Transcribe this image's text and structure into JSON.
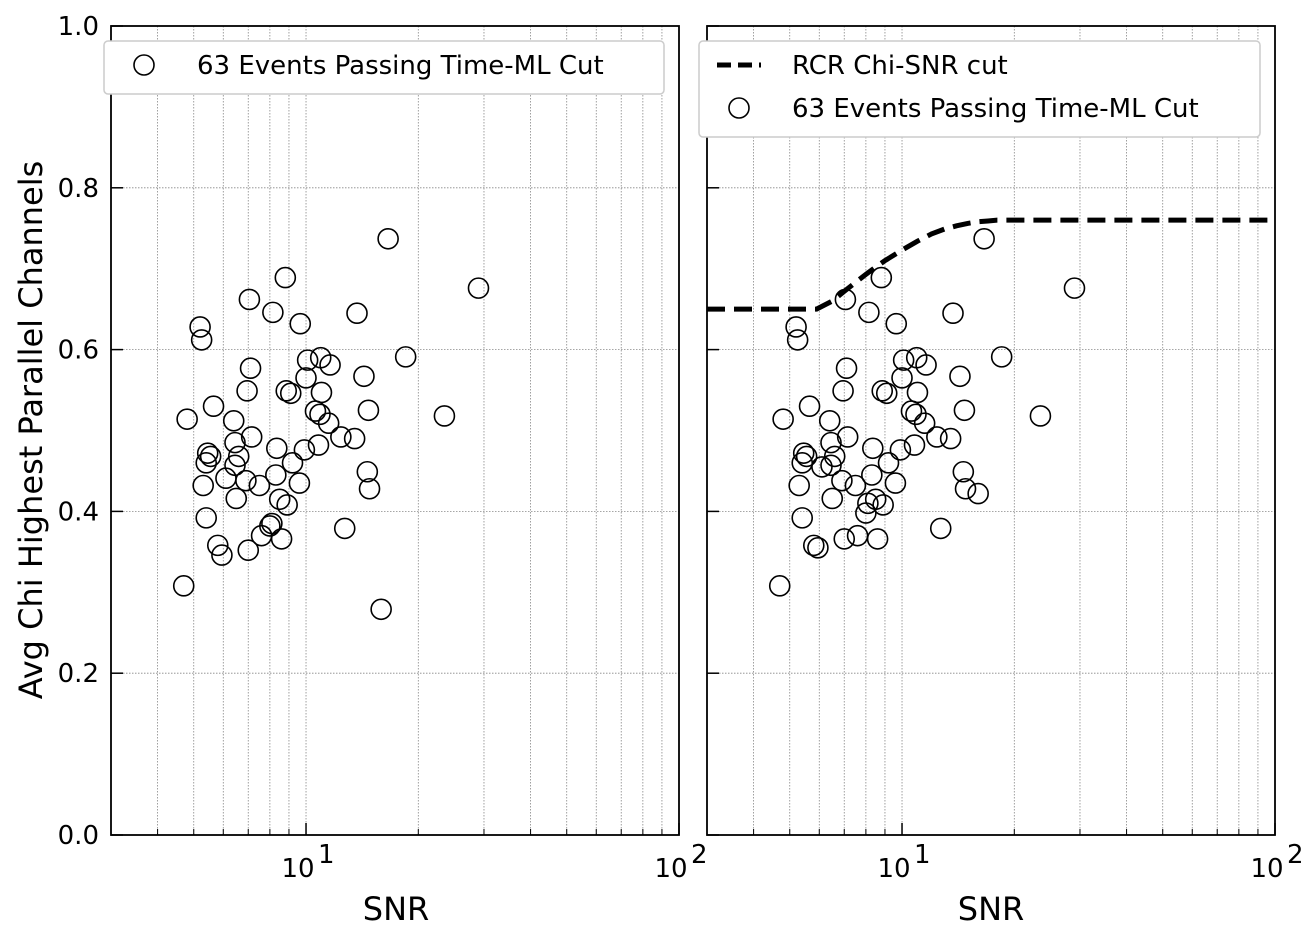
{
  "chart_data": [
    {
      "type": "scatter",
      "xlabel": "SNR",
      "ylabel": "Avg Chi Highest Parallel Channels",
      "xscale": "log",
      "xlim": [
        3,
        100
      ],
      "ylim": [
        0.0,
        1.0
      ],
      "grid": true,
      "legend_position": "top-left",
      "x_tick_labels": [
        {
          "value": 10,
          "label": "10",
          "exp": "1"
        },
        {
          "value": 100,
          "label": "10",
          "exp": "2"
        }
      ],
      "y_tick_labels": [
        {
          "value": 0.0,
          "label": "0.0"
        },
        {
          "value": 0.2,
          "label": "0.2"
        },
        {
          "value": 0.4,
          "label": "0.4"
        },
        {
          "value": 0.6,
          "label": "0.6"
        },
        {
          "value": 0.8,
          "label": "0.8"
        },
        {
          "value": 1.0,
          "label": "1.0"
        }
      ],
      "series": [
        {
          "name": "63 Events Passing Time-ML Cut",
          "marker": "open-circle",
          "color": "#000000",
          "points": [
            [
              4.7,
              0.308
            ],
            [
              4.8,
              0.514
            ],
            [
              5.2,
              0.628
            ],
            [
              5.25,
              0.612
            ],
            [
              5.3,
              0.432
            ],
            [
              5.4,
              0.392
            ],
            [
              5.4,
              0.46
            ],
            [
              5.45,
              0.472
            ],
            [
              5.55,
              0.468
            ],
            [
              5.65,
              0.53
            ],
            [
              5.8,
              0.358
            ],
            [
              5.95,
              0.346
            ],
            [
              6.1,
              0.441
            ],
            [
              6.4,
              0.512
            ],
            [
              6.45,
              0.485
            ],
            [
              6.45,
              0.457
            ],
            [
              6.5,
              0.416
            ],
            [
              6.6,
              0.468
            ],
            [
              6.9,
              0.438
            ],
            [
              6.95,
              0.549
            ],
            [
              7.0,
              0.352
            ],
            [
              7.05,
              0.662
            ],
            [
              7.1,
              0.577
            ],
            [
              7.15,
              0.492
            ],
            [
              7.5,
              0.432
            ],
            [
              7.6,
              0.37
            ],
            [
              8.0,
              0.382
            ],
            [
              8.1,
              0.385
            ],
            [
              8.15,
              0.646
            ],
            [
              8.3,
              0.445
            ],
            [
              8.35,
              0.478
            ],
            [
              8.5,
              0.415
            ],
            [
              8.6,
              0.366
            ],
            [
              8.8,
              0.689
            ],
            [
              8.85,
              0.549
            ],
            [
              8.9,
              0.408
            ],
            [
              9.1,
              0.546
            ],
            [
              9.2,
              0.46
            ],
            [
              9.6,
              0.435
            ],
            [
              9.65,
              0.632
            ],
            [
              9.9,
              0.476
            ],
            [
              10.0,
              0.565
            ],
            [
              10.1,
              0.587
            ],
            [
              10.6,
              0.524
            ],
            [
              10.8,
              0.482
            ],
            [
              10.9,
              0.52
            ],
            [
              10.95,
              0.59
            ],
            [
              11.0,
              0.547
            ],
            [
              11.5,
              0.509
            ],
            [
              11.6,
              0.581
            ],
            [
              12.4,
              0.492
            ],
            [
              12.7,
              0.379
            ],
            [
              13.5,
              0.49
            ],
            [
              13.7,
              0.645
            ],
            [
              14.3,
              0.567
            ],
            [
              14.6,
              0.449
            ],
            [
              14.7,
              0.525
            ],
            [
              14.8,
              0.428
            ],
            [
              15.9,
              0.279
            ],
            [
              16.6,
              0.737
            ],
            [
              18.5,
              0.591
            ],
            [
              23.5,
              0.518
            ],
            [
              29.0,
              0.676
            ]
          ]
        }
      ]
    },
    {
      "type": "scatter",
      "xlabel": "SNR",
      "xscale": "log",
      "xlim": [
        3,
        100
      ],
      "ylim": [
        0.0,
        1.0
      ],
      "grid": true,
      "legend_position": "top-left",
      "x_tick_labels": [
        {
          "value": 10,
          "label": "10",
          "exp": "1"
        },
        {
          "value": 100,
          "label": "10",
          "exp": "2"
        }
      ],
      "series": [
        {
          "name": "RCR Chi-SNR cut",
          "type": "line",
          "style": "dashed",
          "color": "#000000",
          "x": [
            3,
            4,
            5,
            5.9,
            6.5,
            7,
            7.5,
            8,
            8.5,
            9,
            10,
            11,
            12,
            13,
            14,
            15,
            16,
            17,
            18,
            20,
            30,
            50,
            100
          ],
          "y": [
            0.65,
            0.65,
            0.65,
            0.65,
            0.66,
            0.672,
            0.683,
            0.693,
            0.702,
            0.71,
            0.723,
            0.734,
            0.743,
            0.749,
            0.753,
            0.756,
            0.758,
            0.759,
            0.76,
            0.76,
            0.76,
            0.76,
            0.76
          ]
        },
        {
          "name": "63 Events Passing Time-ML Cut",
          "marker": "open-circle",
          "color": "#000000",
          "points": [
            [
              4.7,
              0.308
            ],
            [
              4.8,
              0.514
            ],
            [
              5.2,
              0.628
            ],
            [
              5.25,
              0.612
            ],
            [
              5.3,
              0.432
            ],
            [
              5.4,
              0.392
            ],
            [
              5.4,
              0.46
            ],
            [
              5.45,
              0.472
            ],
            [
              5.55,
              0.468
            ],
            [
              5.65,
              0.53
            ],
            [
              5.8,
              0.358
            ],
            [
              5.95,
              0.355
            ],
            [
              6.1,
              0.455
            ],
            [
              6.4,
              0.512
            ],
            [
              6.45,
              0.485
            ],
            [
              6.45,
              0.457
            ],
            [
              6.5,
              0.416
            ],
            [
              6.6,
              0.468
            ],
            [
              6.9,
              0.438
            ],
            [
              6.95,
              0.549
            ],
            [
              7.0,
              0.366
            ],
            [
              7.05,
              0.662
            ],
            [
              7.1,
              0.577
            ],
            [
              7.15,
              0.492
            ],
            [
              7.5,
              0.432
            ],
            [
              7.6,
              0.37
            ],
            [
              8.0,
              0.398
            ],
            [
              8.1,
              0.41
            ],
            [
              8.15,
              0.646
            ],
            [
              8.3,
              0.445
            ],
            [
              8.35,
              0.478
            ],
            [
              8.5,
              0.415
            ],
            [
              8.6,
              0.366
            ],
            [
              8.8,
              0.689
            ],
            [
              8.85,
              0.549
            ],
            [
              8.9,
              0.408
            ],
            [
              9.1,
              0.546
            ],
            [
              9.2,
              0.46
            ],
            [
              9.6,
              0.435
            ],
            [
              9.65,
              0.632
            ],
            [
              9.9,
              0.476
            ],
            [
              10.0,
              0.565
            ],
            [
              10.1,
              0.587
            ],
            [
              10.6,
              0.524
            ],
            [
              10.8,
              0.482
            ],
            [
              10.9,
              0.52
            ],
            [
              10.95,
              0.59
            ],
            [
              11.0,
              0.547
            ],
            [
              11.5,
              0.509
            ],
            [
              11.6,
              0.581
            ],
            [
              12.4,
              0.492
            ],
            [
              12.7,
              0.379
            ],
            [
              13.5,
              0.49
            ],
            [
              13.7,
              0.645
            ],
            [
              14.3,
              0.567
            ],
            [
              14.6,
              0.449
            ],
            [
              14.7,
              0.525
            ],
            [
              14.8,
              0.428
            ],
            [
              16.0,
              0.422
            ],
            [
              16.6,
              0.737
            ],
            [
              18.5,
              0.591
            ],
            [
              23.5,
              0.518
            ],
            [
              29.0,
              0.676
            ]
          ]
        }
      ]
    }
  ]
}
